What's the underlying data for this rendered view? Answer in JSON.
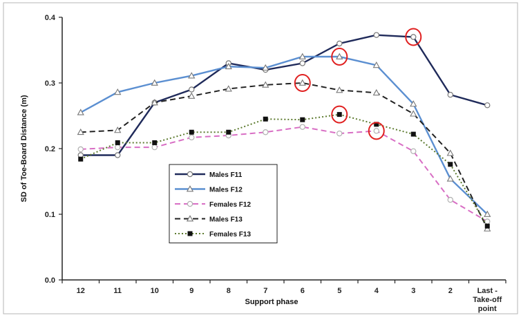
{
  "chart_data": {
    "type": "line",
    "title": "",
    "xlabel": "Support phase",
    "ylabel": "SD of Toe-Board Distance (m)",
    "categories": [
      "12",
      "11",
      "10",
      "9",
      "8",
      "7",
      "6",
      "5",
      "4",
      "3",
      "2",
      "Last -\nTake-off\npoint"
    ],
    "ylim": [
      0.0,
      0.4
    ],
    "yticks": [
      "0.0",
      "0.1",
      "0.2",
      "0.3",
      "0.4"
    ],
    "grid": false,
    "legend_position": "center-left",
    "series": [
      {
        "name": "Males F11",
        "color": "#1f2a5a",
        "dash": "solid",
        "marker": "circle-open",
        "values": [
          0.19,
          0.19,
          0.27,
          0.29,
          0.33,
          0.32,
          0.33,
          0.36,
          0.373,
          0.37,
          0.282,
          0.266
        ]
      },
      {
        "name": "Males     F12",
        "color": "#5b8fd1",
        "dash": "solid",
        "marker": "triangle-open",
        "values": [
          0.255,
          0.286,
          0.3,
          0.311,
          0.325,
          0.323,
          0.34,
          0.34,
          0.327,
          0.268,
          0.154,
          0.1
        ]
      },
      {
        "name": "Females F12",
        "color": "#d86ec4",
        "dash": "dashed",
        "marker": "circle-open",
        "values": [
          0.199,
          0.202,
          0.202,
          0.217,
          0.22,
          0.225,
          0.233,
          0.223,
          0.227,
          0.196,
          0.122,
          0.089
        ]
      },
      {
        "name": "Males     F13",
        "color": "#222222",
        "dash": "dashed",
        "marker": "triangle-open",
        "values": [
          0.225,
          0.228,
          0.27,
          0.28,
          0.291,
          0.297,
          0.3,
          0.289,
          0.285,
          0.253,
          0.193,
          0.078
        ]
      },
      {
        "name": "Females F13",
        "color": "#5c7a2e",
        "dash": "dotted",
        "marker": "square-filled",
        "values": [
          0.184,
          0.209,
          0.209,
          0.225,
          0.225,
          0.245,
          0.244,
          0.252,
          0.237,
          0.222,
          0.176,
          0.082
        ]
      }
    ],
    "highlights": [
      {
        "series_index": 0,
        "point_index": 9
      },
      {
        "series_index": 1,
        "point_index": 7
      },
      {
        "series_index": 3,
        "point_index": 6
      },
      {
        "series_index": 4,
        "point_index": 7
      },
      {
        "series_index": 2,
        "point_index": 8
      }
    ],
    "highlight_color": "#e02020"
  }
}
